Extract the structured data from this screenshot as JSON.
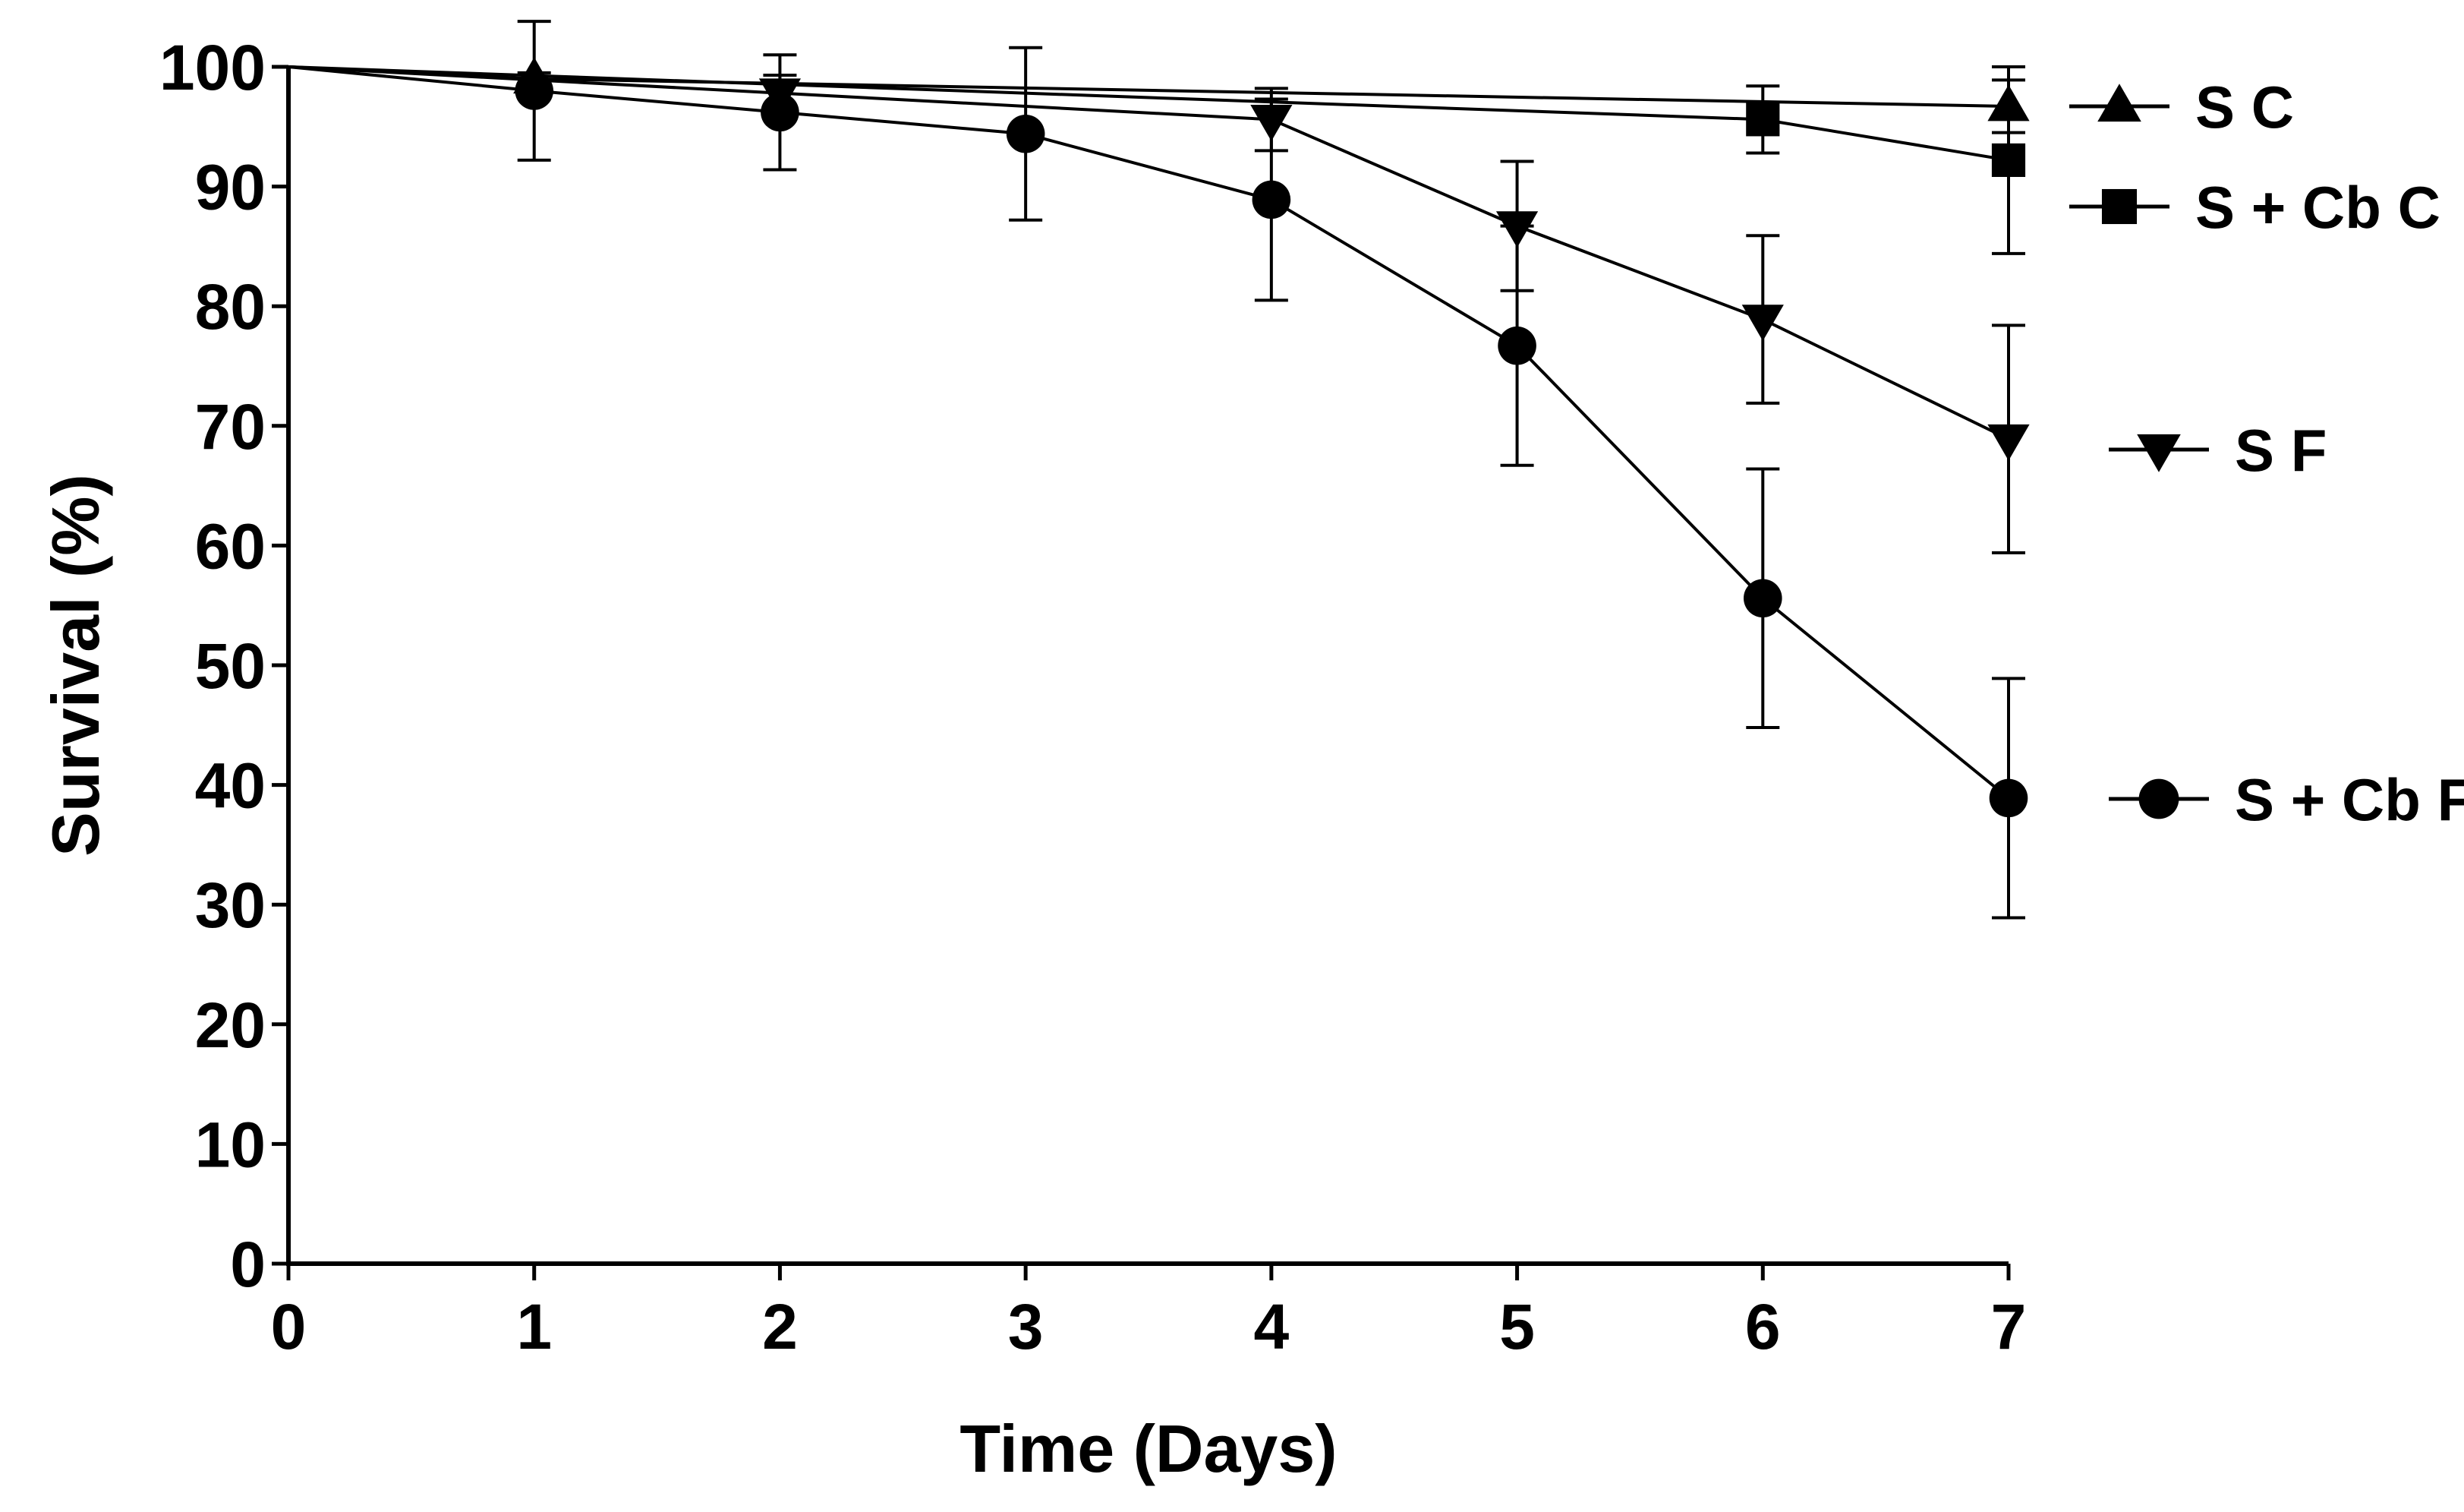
{
  "chart_data": {
    "type": "line",
    "title": "",
    "xlabel": "Time (Days)",
    "ylabel": "Survival (%)",
    "xlim": [
      0,
      7
    ],
    "ylim": [
      0,
      100
    ],
    "xticks": [
      0,
      1,
      2,
      3,
      4,
      5,
      6,
      7
    ],
    "yticks": [
      0,
      10,
      20,
      30,
      40,
      50,
      60,
      70,
      80,
      90,
      100
    ],
    "grid": false,
    "legend_position": "right",
    "series": [
      {
        "name": "S C",
        "marker": "triangle-up",
        "x": [
          0,
          1,
          7
        ],
        "y": [
          100,
          99,
          96.7
        ],
        "err": [
          0,
          0.5,
          2.2
        ]
      },
      {
        "name": "S + Cb C",
        "marker": "square",
        "x": [
          0,
          6,
          7
        ],
        "y": [
          100,
          95.6,
          92.2
        ],
        "err": [
          0,
          2.8,
          7.8
        ]
      },
      {
        "name": "S F",
        "marker": "triangle-down",
        "x": [
          0,
          2,
          4,
          5,
          6,
          7
        ],
        "y": [
          100,
          97.8,
          95.6,
          86.7,
          78.9,
          68.9
        ],
        "err": [
          0,
          1.5,
          2.6,
          5.4,
          7.0,
          9.5
        ]
      },
      {
        "name": "S + Cb F",
        "marker": "circle",
        "x": [
          0,
          1,
          2,
          3,
          4,
          5,
          6,
          7
        ],
        "y": [
          100,
          98,
          96.2,
          94.4,
          88.9,
          76.7,
          55.6,
          38.9
        ],
        "err": [
          0,
          5.8,
          4.8,
          7.2,
          8.4,
          10.0,
          10.8,
          10.0
        ]
      }
    ]
  }
}
